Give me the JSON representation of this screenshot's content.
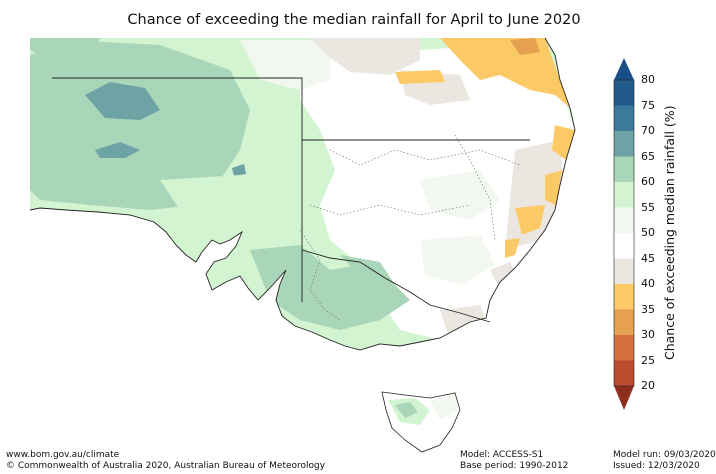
{
  "title": "Chance of exceeding the median rainfall for April to June 2020",
  "colorbar": {
    "label": "Chance of exceeding median rainfall (%)",
    "ticks": [
      "80",
      "75",
      "70",
      "65",
      "60",
      "55",
      "50",
      "45",
      "40",
      "35",
      "30",
      "25",
      "20"
    ],
    "bands": [
      {
        "range": "75-80",
        "color": "#225a8c"
      },
      {
        "range": "70-75",
        "color": "#3b7a9a"
      },
      {
        "range": "65-70",
        "color": "#6ea3a6"
      },
      {
        "range": "60-65",
        "color": "#a9d5b8"
      },
      {
        "range": "55-60",
        "color": "#d3f4d0"
      },
      {
        "range": "50-55",
        "color": "#f2f8f0"
      },
      {
        "range": "45-50",
        "color": "#ffffff"
      },
      {
        "range": "40-45",
        "color": "#ece6e0"
      },
      {
        "range": "35-40",
        "color": "#fcc967"
      },
      {
        "range": "30-35",
        "color": "#e5a050"
      },
      {
        "range": "25-30",
        "color": "#d4703f"
      },
      {
        "range": "20-25",
        "color": "#bc4b2e"
      }
    ],
    "over_color": "#1a4e86",
    "under_color": "#8e2f1e"
  },
  "footer": {
    "website": "www.bom.gov.au/climate",
    "copyright": "© Commonwealth of Australia 2020, Australian Bureau of Meteorology",
    "model": "Model: ACCESS-S1",
    "base_period": "Base period: 1990-2012",
    "model_run": "Model run: 09/03/2020",
    "issued": "Issued: 12/03/2020"
  }
}
